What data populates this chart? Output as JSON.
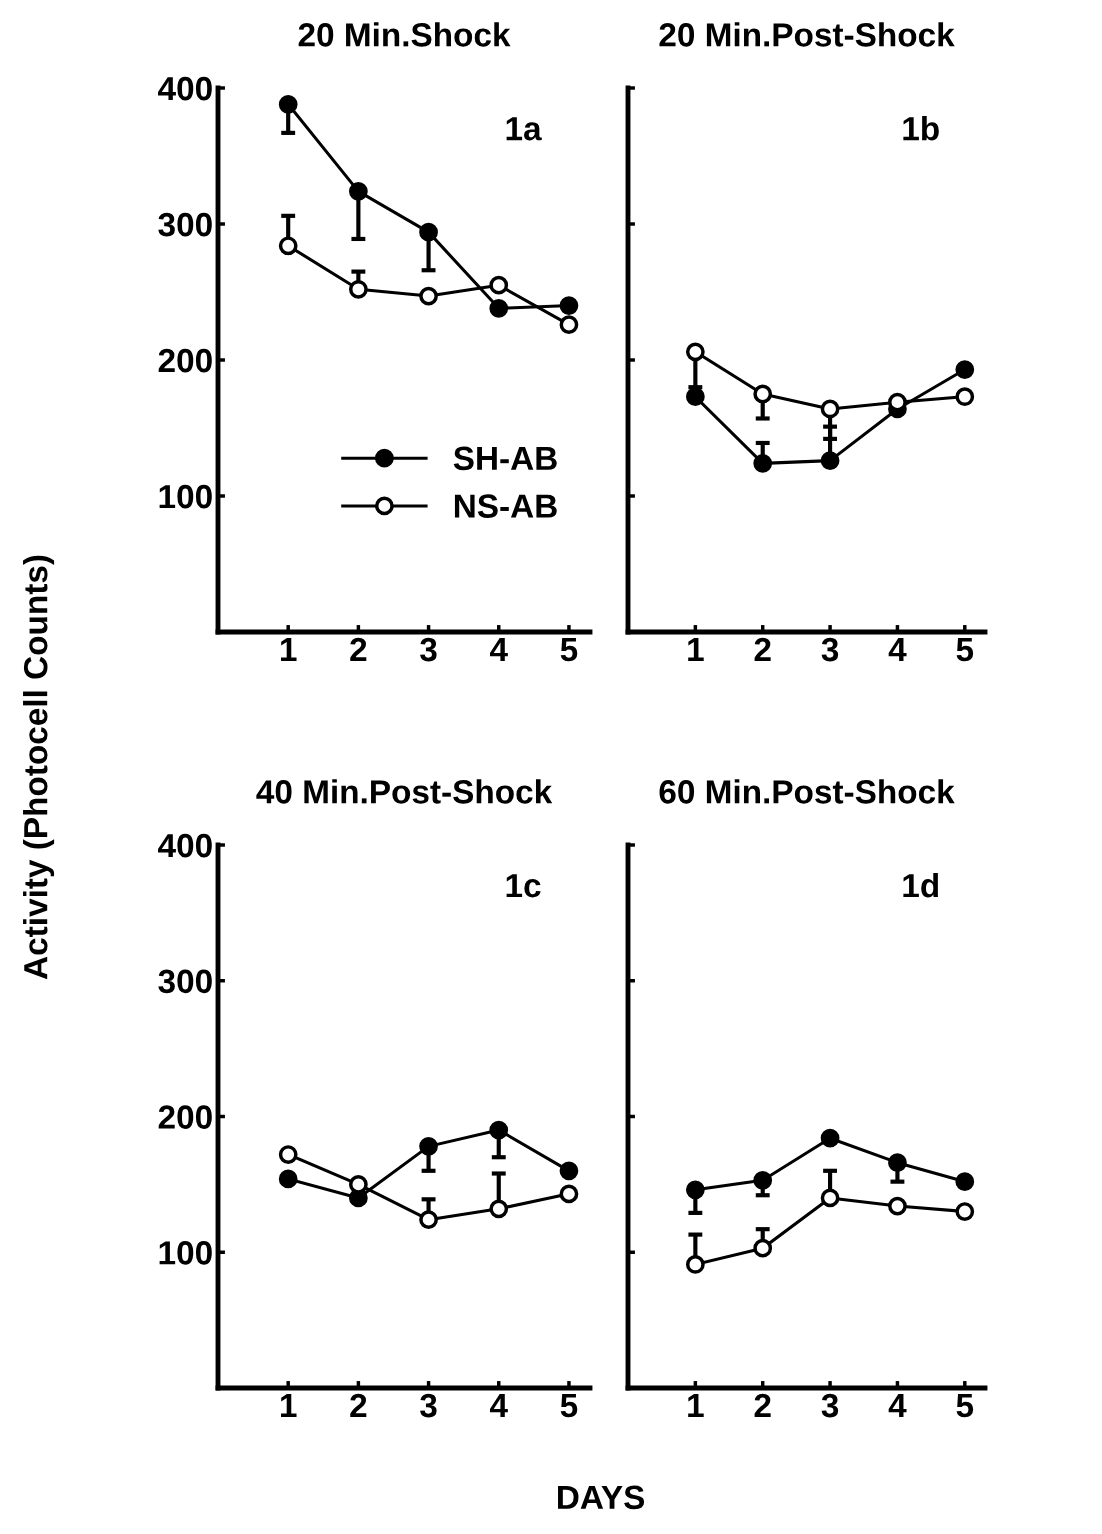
{
  "chart_data": [
    {
      "type": "line",
      "title": "20 Min.Shock",
      "ylabel": "Activity (Photocell Counts)",
      "annotations": [
        "1a"
      ],
      "x": [
        1,
        2,
        3,
        4,
        5
      ],
      "xlim": [
        0,
        5.3
      ],
      "xticks": [
        1,
        2,
        3,
        4,
        5
      ],
      "ylim": [
        0,
        400
      ],
      "yticks": [
        100,
        200,
        300,
        400
      ],
      "marker": "circle",
      "legend": "center",
      "grid": false,
      "series": [
        {
          "name": "SH-AB",
          "color": "#000000",
          "values": [
            388,
            324,
            294,
            238,
            240
          ],
          "errors": [
            [
              367,
              388
            ],
            [
              289,
              324
            ],
            [
              266,
              294
            ],
            null,
            null
          ]
        },
        {
          "name": "NS-AB",
          "color": "#000000",
          "values": [
            284,
            252,
            247,
            255,
            226
          ],
          "errors": [
            [
              284,
              306
            ],
            [
              252,
              265
            ],
            null,
            null,
            null
          ]
        }
      ]
    },
    {
      "type": "line",
      "title": "20 Min.Post-Shock",
      "annotations": [
        "1b"
      ],
      "x": [
        1,
        2,
        3,
        4,
        5
      ],
      "xlim": [
        0,
        5.3
      ],
      "xticks": [
        1,
        2,
        3,
        4,
        5
      ],
      "ylim": [
        0,
        400
      ],
      "yticks": [
        100,
        200,
        300,
        400
      ],
      "tick_labels": "x",
      "marker": "circle",
      "grid": false,
      "series": [
        {
          "color": "#000000",
          "values": [
            173,
            124,
            126,
            164,
            193
          ],
          "errors": [
            null,
            [
              124,
              139
            ],
            [
              126,
              151
            ],
            null,
            null
          ]
        },
        {
          "color": "#000000",
          "values": [
            206,
            175,
            164,
            169,
            173
          ],
          "errors": [
            [
              180,
              206
            ],
            [
              157,
              175
            ],
            [
              142,
              164
            ],
            null,
            null
          ]
        }
      ]
    },
    {
      "type": "line",
      "title": "40 Min.Post-Shock",
      "xlabel": "DAYS",
      "annotations": [
        "1c"
      ],
      "x": [
        1,
        2,
        3,
        4,
        5
      ],
      "xlim": [
        0,
        5.3
      ],
      "xticks": [
        1,
        2,
        3,
        4,
        5
      ],
      "ylim": [
        0,
        400
      ],
      "yticks": [
        100,
        200,
        300,
        400
      ],
      "marker": "circle",
      "grid": false,
      "series": [
        {
          "color": "#000000",
          "values": [
            154,
            140,
            178,
            190,
            160
          ],
          "errors": [
            null,
            null,
            [
              160,
              178
            ],
            [
              170,
              190
            ],
            null
          ]
        },
        {
          "color": "#000000",
          "values": [
            172,
            150,
            124,
            132,
            143
          ],
          "errors": [
            null,
            null,
            [
              124,
              139
            ],
            [
              132,
              158
            ],
            null
          ]
        }
      ]
    },
    {
      "type": "line",
      "title": "60 Min.Post-Shock",
      "annotations": [
        "1d"
      ],
      "x": [
        1,
        2,
        3,
        4,
        5
      ],
      "xlim": [
        0,
        5.3
      ],
      "xticks": [
        1,
        2,
        3,
        4,
        5
      ],
      "ylim": [
        0,
        400
      ],
      "yticks": [
        100,
        200,
        300,
        400
      ],
      "tick_labels": "x",
      "marker": "circle",
      "grid": false,
      "series": [
        {
          "color": "#000000",
          "values": [
            146,
            153,
            184,
            166,
            152
          ],
          "errors": [
            [
              129,
              146
            ],
            [
              142,
              153
            ],
            null,
            [
              152,
              166
            ],
            null
          ]
        },
        {
          "color": "#000000",
          "values": [
            91,
            103,
            140,
            134,
            130
          ],
          "errors": [
            [
              91,
              113
            ],
            [
              103,
              117
            ],
            [
              140,
              160
            ],
            null,
            null
          ]
        }
      ]
    }
  ]
}
